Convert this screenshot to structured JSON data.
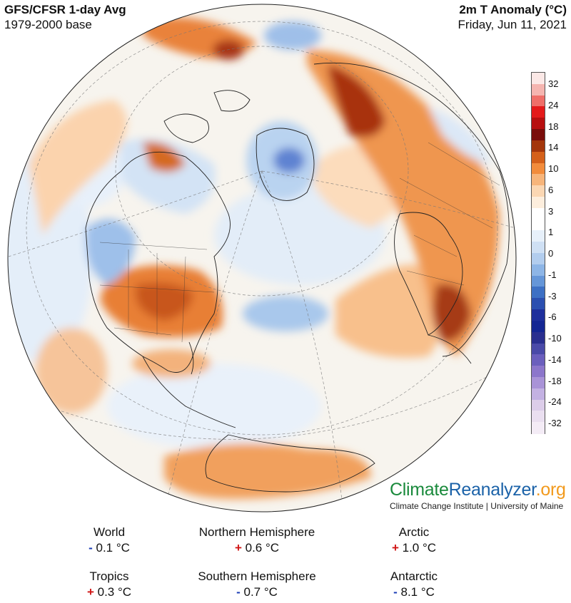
{
  "header": {
    "model_title": "GFS/CFSR 1-day Avg",
    "base_period": "1979-2000 base",
    "variable_title": "2m T Anomaly (°C)",
    "date": "Friday, Jun 11, 2021"
  },
  "colors": {
    "ocean_base": "#f7f4ee",
    "warm_light": "#fbd9b8",
    "warm_mid": "#f59a4c",
    "warm_strong": "#d25a14",
    "warm_extreme": "#8a1b0e",
    "cool_light": "#dde9f7",
    "cool_mid": "#9cc1ea",
    "cool_strong": "#5b7fd0",
    "plus_sign": "#d01515",
    "minus_sign": "#1a3bb5"
  },
  "legend": {
    "labels": [
      "32",
      "24",
      "18",
      "14",
      "10",
      "6",
      "3",
      "1",
      "0",
      "-1",
      "-3",
      "-6",
      "-10",
      "-14",
      "-18",
      "-24",
      "-32"
    ],
    "segment_colors": [
      "#fbe8e6",
      "#f5b5b0",
      "#ef6f69",
      "#e41a1a",
      "#b70f0f",
      "#7a0d0b",
      "#a3360b",
      "#d4601a",
      "#f28c3c",
      "#f7b57b",
      "#fbd7b3",
      "#fdeedd",
      "#ffffff",
      "#ffffff",
      "#e7f0fa",
      "#cfe0f4",
      "#b2cdee",
      "#8db5e6",
      "#6596d8",
      "#3d70c4",
      "#2b4fb0",
      "#1e2f9c",
      "#142693",
      "#2a2f8f",
      "#4a4aa8",
      "#6b5fbd",
      "#8c76cb",
      "#a993d7",
      "#c3b1e2",
      "#dccde9",
      "#eadff0",
      "#f4ecf6"
    ]
  },
  "brand": {
    "logo_climate": "Climate",
    "logo_reanalyzer": "Reanalyzer",
    "logo_org": ".org",
    "subtitle": "Climate Change Institute | University of Maine"
  },
  "stats": [
    {
      "name": "World",
      "sign": "-",
      "value": "0.1 °C"
    },
    {
      "name": "Northern Hemisphere",
      "sign": "+",
      "value": "0.6 °C"
    },
    {
      "name": "Arctic",
      "sign": "+",
      "value": "1.0 °C"
    },
    {
      "name": "Tropics",
      "sign": "+",
      "value": "0.3 °C"
    },
    {
      "name": "Southern Hemisphere",
      "sign": "-",
      "value": "0.7 °C"
    },
    {
      "name": "Antarctic",
      "sign": "-",
      "value": "8.1 °C"
    }
  ]
}
